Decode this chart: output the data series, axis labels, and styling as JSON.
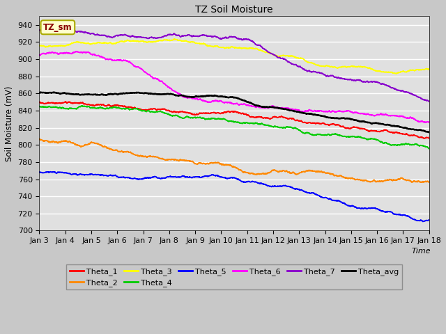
{
  "title": "TZ Soil Moisture",
  "xlabel": "Time",
  "ylabel": "Soil Moisture (mV)",
  "ylim": [
    700,
    950
  ],
  "yticks": [
    700,
    720,
    740,
    760,
    780,
    800,
    820,
    840,
    860,
    880,
    900,
    920,
    940
  ],
  "date_labels": [
    "Jan 3",
    "Jan 4",
    "Jan 5",
    "Jan 6",
    "Jan 7",
    "Jan 8",
    "Jan 9",
    "Jan 10",
    "Jan 11",
    "Jan 12",
    "Jan 13",
    "Jan 14",
    "Jan 15",
    "Jan 16",
    "Jan 17",
    "Jan 18"
  ],
  "background_color": "#c8c8c8",
  "plot_bg_color": "#e0e0e0",
  "legend_label": "TZ_sm",
  "legend_box_color": "#ffffcc",
  "legend_box_edge": "#aaaa00",
  "legend_text_color": "#880000",
  "series": {
    "Theta_1": {
      "color": "#ff0000"
    },
    "Theta_2": {
      "color": "#ff8800"
    },
    "Theta_3": {
      "color": "#ffff00"
    },
    "Theta_4": {
      "color": "#00cc00"
    },
    "Theta_5": {
      "color": "#0000ff"
    },
    "Theta_6": {
      "color": "#ff00ff"
    },
    "Theta_7": {
      "color": "#8800cc"
    },
    "Theta_avg": {
      "color": "#000000"
    }
  }
}
